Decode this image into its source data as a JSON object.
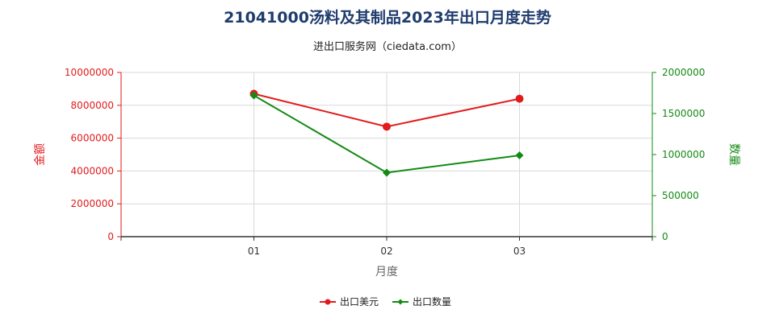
{
  "chart_data": {
    "type": "line",
    "title": "21041000汤料及其制品2023年出口月度走势",
    "subtitle": "进出口服务网（ciedata.com）",
    "xlabel": "月度",
    "ylabel_left": "金额",
    "ylabel_right": "数量",
    "categories": [
      "01",
      "02",
      "03"
    ],
    "y_left": {
      "min": 0,
      "max": 10000000,
      "ticks": [
        "0",
        "2000000",
        "4000000",
        "6000000",
        "8000000",
        "10000000"
      ]
    },
    "y_right": {
      "min": 0,
      "max": 2000000,
      "ticks": [
        "0",
        "500000",
        "1000000",
        "1500000",
        "2000000"
      ]
    },
    "grid": true,
    "legend_position": "bottom-center",
    "series": [
      {
        "name": "出口美元",
        "axis": "left",
        "color": "#e31a1c",
        "marker": "circle",
        "values": [
          8700000,
          6700000,
          8400000
        ]
      },
      {
        "name": "出口数量",
        "axis": "right",
        "color": "#138a13",
        "marker": "diamond",
        "values": [
          1720000,
          780000,
          990000
        ]
      }
    ]
  }
}
